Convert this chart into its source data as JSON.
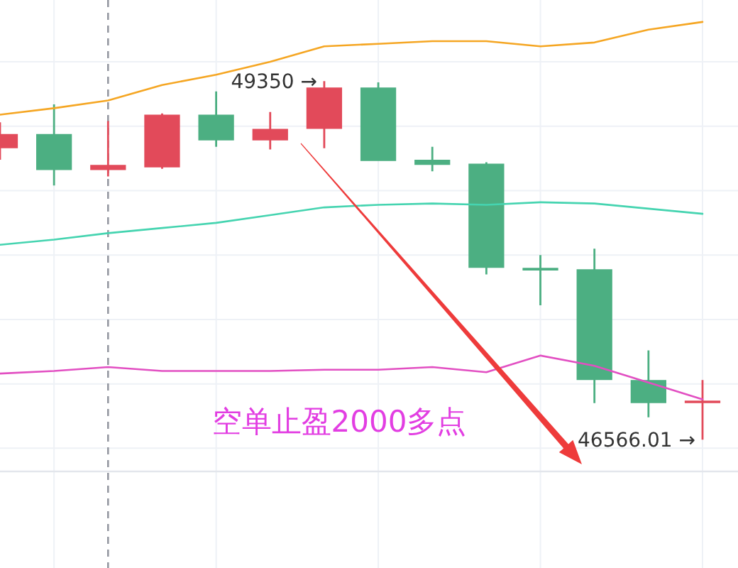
{
  "chart_data": {
    "type": "candlestick",
    "categories": [
      null,
      null,
      null,
      null,
      null,
      null,
      null,
      null,
      null,
      null,
      null,
      null,
      null,
      null
    ],
    "ohlc": [
      [
        48830,
        49030,
        48740,
        48940
      ],
      [
        48940,
        49170,
        48540,
        48660
      ],
      [
        48660,
        49040,
        48610,
        48700
      ],
      [
        48680,
        49100,
        48670,
        49090
      ],
      [
        49090,
        49270,
        48840,
        48890
      ],
      [
        48890,
        49110,
        48820,
        48980
      ],
      [
        48980,
        49350,
        48830,
        49300
      ],
      [
        49300,
        49340,
        48730,
        48730
      ],
      [
        48740,
        48840,
        48650,
        48700
      ],
      [
        48710,
        48720,
        47850,
        47900
      ],
      [
        47900,
        48000,
        47610,
        47880
      ],
      [
        47890,
        48050,
        46850,
        47030
      ],
      [
        47030,
        47260,
        46740,
        46850
      ],
      [
        46850,
        47030,
        46566.01,
        46870
      ]
    ],
    "colors": [
      "#e24a5a",
      "#4caf82",
      "#e24a5a",
      "#e24a5a",
      "#4caf82",
      "#e24a5a",
      "#e24a5a",
      "#4caf82",
      "#4caf82",
      "#4caf82",
      "#4caf82",
      "#4caf82",
      "#4caf82",
      "#e24a5a"
    ],
    "series": [
      {
        "type": "line",
        "color": "#f5a623",
        "values": [
          49090,
          49140,
          49200,
          49320,
          49400,
          49500,
          49620,
          49640,
          49660,
          49660,
          49620,
          49650,
          49750,
          49810
        ]
      },
      {
        "type": "line",
        "color": "#45d4b0",
        "values": [
          48080,
          48120,
          48170,
          48210,
          48250,
          48310,
          48370,
          48390,
          48400,
          48390,
          48410,
          48400,
          48360,
          48320
        ]
      },
      {
        "type": "line",
        "color": "#e24fc2",
        "values": [
          47080,
          47100,
          47130,
          47100,
          47100,
          47100,
          47110,
          47110,
          47130,
          47090,
          47220,
          47140,
          47010,
          46880
        ]
      }
    ],
    "ylim": [
      46320,
      49980
    ],
    "yticks": [
      {
        "value": 46500,
        "label": null
      },
      {
        "value": 47000,
        "label": null
      },
      {
        "value": 47500,
        "label": null
      },
      {
        "value": 48000,
        "label": null
      },
      {
        "value": 48500,
        "label": null
      },
      {
        "value": 49000,
        "label": null
      },
      {
        "value": 49500,
        "label": null
      }
    ],
    "grid": true,
    "annotations": [
      "49350 →",
      "46566.01 →",
      "空单止盈2000多点"
    ]
  }
}
